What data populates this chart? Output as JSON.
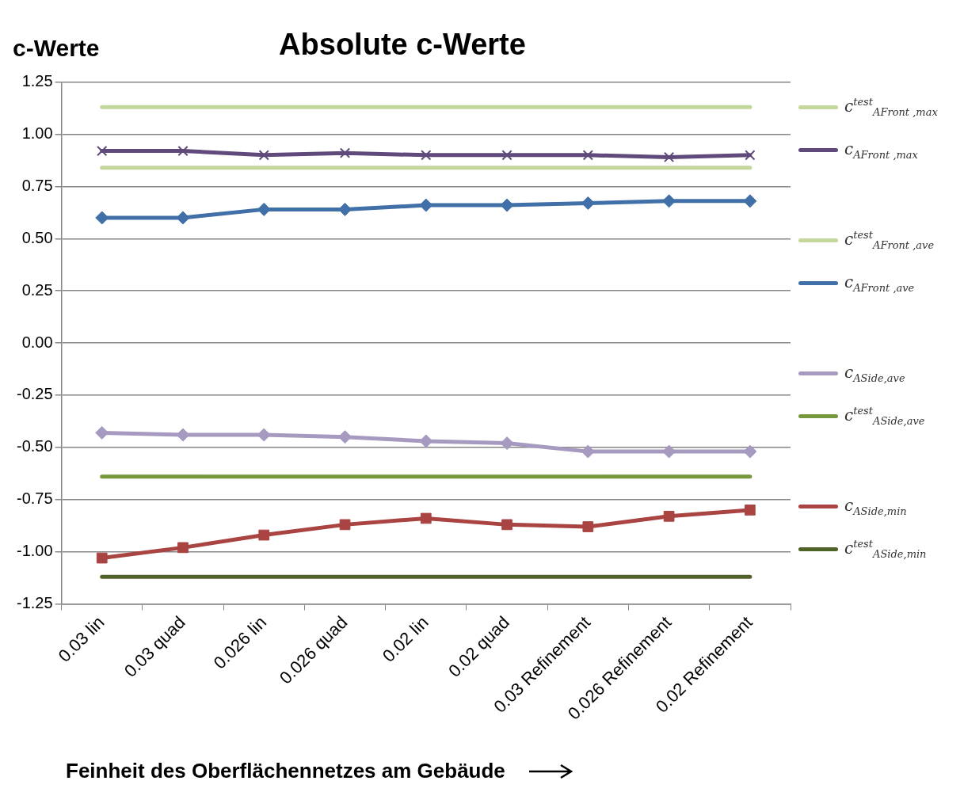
{
  "chart_data": {
    "type": "line",
    "title": "Absolute c-Werte",
    "ylabel": "c-Werte",
    "xlabel": "Feinheit des Oberflächennetzes am Gebäude",
    "categories": [
      "0.03 lin",
      "0.03 quad",
      "0.026 lin",
      "0.026 quad",
      "0.02 lin",
      "0.02 quad",
      "0.03 Refinement",
      "0.026 Refinement",
      "0.02 Refinement"
    ],
    "series": [
      {
        "name": "c$^{test}$$_{AFront ,max}$",
        "color": "#c3d69b",
        "marker": "none",
        "values": [
          1.13,
          1.13,
          1.13,
          1.13,
          1.13,
          1.13,
          1.13,
          1.13,
          1.13
        ]
      },
      {
        "name": "c$_{AFront ,max}$",
        "color": "#604a7b",
        "marker": "cross",
        "values": [
          0.92,
          0.92,
          0.9,
          0.91,
          0.9,
          0.9,
          0.9,
          0.89,
          0.9
        ]
      },
      {
        "name": "c$^{test}$$_{AFront ,ave}$",
        "color": "#c3d69b",
        "marker": "none",
        "values": [
          0.84,
          0.84,
          0.84,
          0.84,
          0.84,
          0.84,
          0.84,
          0.84,
          0.84
        ]
      },
      {
        "name": "c$_{AFront ,ave}$",
        "color": "#4170a8",
        "marker": "diamond",
        "values": [
          0.6,
          0.6,
          0.64,
          0.64,
          0.66,
          0.66,
          0.67,
          0.68,
          0.68
        ]
      },
      {
        "name": "c$_{ASide,ave}$",
        "color": "#a69ac0",
        "marker": "diamond",
        "values": [
          -0.43,
          -0.44,
          -0.44,
          -0.45,
          -0.47,
          -0.48,
          -0.52,
          -0.52,
          -0.52
        ]
      },
      {
        "name": "c$^{test}$$_{ASide,ave}$",
        "color": "#77973c",
        "marker": "none",
        "values": [
          -0.64,
          -0.64,
          -0.64,
          -0.64,
          -0.64,
          -0.64,
          -0.64,
          -0.64,
          -0.64
        ]
      },
      {
        "name": "c$_{ASide,min}$",
        "color": "#a94442",
        "marker": "square",
        "values": [
          -1.03,
          -0.98,
          -0.92,
          -0.87,
          -0.84,
          -0.87,
          -0.88,
          -0.83,
          -0.8
        ]
      },
      {
        "name": "c$^{test}$$_{ASide,min}$",
        "color": "#4f6228",
        "marker": "none",
        "values": [
          -1.12,
          -1.12,
          -1.12,
          -1.12,
          -1.12,
          -1.12,
          -1.12,
          -1.12,
          -1.12
        ]
      }
    ],
    "ylim": [
      -1.25,
      1.25
    ],
    "yticks": [
      {
        "value": -1.25,
        "label": "-1.25"
      },
      {
        "value": -1,
        "label": "-1.00"
      },
      {
        "value": -0.75,
        "label": "-0.75"
      },
      {
        "value": -0.5,
        "label": "-0.50"
      },
      {
        "value": -0.25,
        "label": "-0.25"
      },
      {
        "value": 0,
        "label": "0.00"
      },
      {
        "value": 0.25,
        "label": "0.25"
      },
      {
        "value": 0.5,
        "label": "0.50"
      },
      {
        "value": 0.75,
        "label": "0.75"
      },
      {
        "value": 1,
        "label": "1.00"
      },
      {
        "value": 1.25,
        "label": "1.25"
      }
    ],
    "grid": "y",
    "legend": "right",
    "line_style": "solid"
  }
}
